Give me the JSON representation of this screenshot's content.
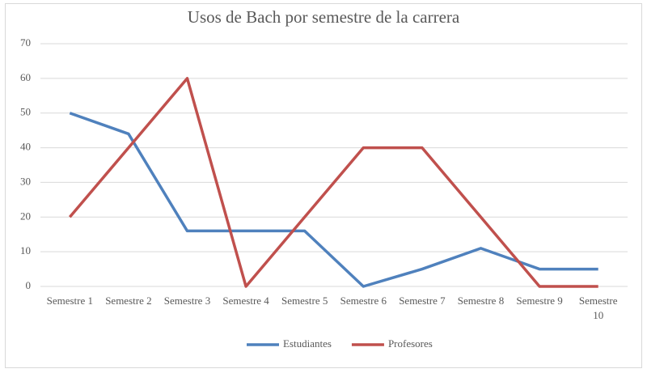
{
  "chart_data": {
    "type": "line",
    "title": "Usos de Bach por semestre de la carrera",
    "categories": [
      "Semestre 1",
      "Semestre 2",
      "Semestre 3",
      "Semestre 4",
      "Semestre 5",
      "Semestre 6",
      "Semestre 7",
      "Semestre 8",
      "Semestre 9",
      "Semestre 10"
    ],
    "series": [
      {
        "name": "Estudiantes",
        "color": "#4f81bd",
        "values": [
          50,
          44,
          16,
          16,
          16,
          0,
          5,
          11,
          5,
          5
        ]
      },
      {
        "name": "Profesores",
        "color": "#c0504d",
        "values": [
          20,
          40,
          60,
          0,
          20,
          40,
          40,
          20,
          0,
          0
        ]
      }
    ],
    "ylim": [
      0,
      70
    ],
    "yticks": [
      0,
      10,
      20,
      30,
      40,
      50,
      60,
      70
    ],
    "grid": true,
    "legend": "bottom"
  }
}
